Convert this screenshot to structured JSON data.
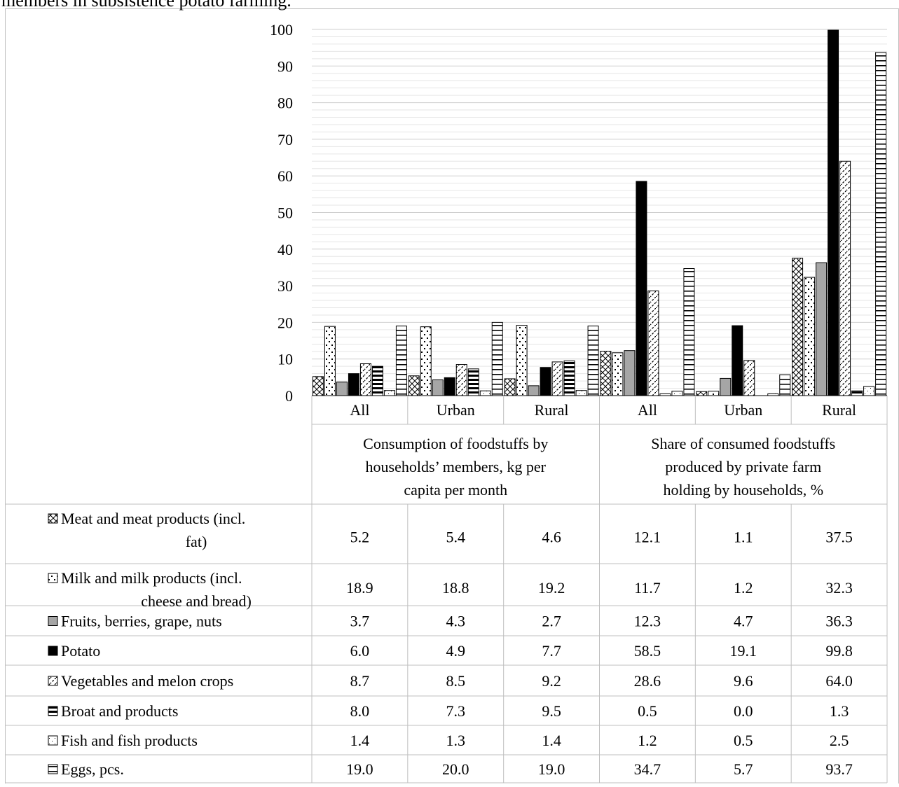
{
  "caption": "members in subsistence potato farming.",
  "chart_data": {
    "type": "bar",
    "y_ticks": [
      "0",
      "10",
      "20",
      "30",
      "40",
      "50",
      "60",
      "70",
      "80",
      "90",
      "100"
    ],
    "ylim": [
      0,
      100
    ],
    "minor_grid_step": 2,
    "categories": [
      "All",
      "Urban",
      "Rural",
      "All",
      "Urban",
      "Rural"
    ],
    "groups": [
      {
        "label": "Consumption of foodstuffs by households’ members, kg per capita per month",
        "lines": [
          "Consumption of foodstuffs by",
          "households’ members, kg per",
          "capita per month"
        ]
      },
      {
        "label": "Share of consumed foodstuffs produced by private farm holding by households, %",
        "lines": [
          "Share of consumed foodstuffs",
          "produced by private farm",
          "holding by households, %"
        ]
      }
    ],
    "series": [
      {
        "name": "Meat and meat products (incl. fat)",
        "lines": [
          "Meat and meat products (incl.",
          "fat)"
        ],
        "pattern": "crosshatch",
        "values": [
          5.2,
          5.4,
          4.6,
          12.1,
          1.1,
          37.5
        ],
        "labels": [
          "5.2",
          "5.4",
          "4.6",
          "12.1",
          "1.1",
          "37.5"
        ]
      },
      {
        "name": "Milk and milk products (incl. cheese and bread)",
        "lines": [
          "Milk and milk products (incl.",
          "cheese and bread)"
        ],
        "pattern": "dots",
        "values": [
          18.9,
          18.8,
          19.2,
          11.7,
          1.2,
          32.3
        ],
        "labels": [
          "18.9",
          "18.8",
          "19.2",
          "11.7",
          "1.2",
          "32.3"
        ]
      },
      {
        "name": "Fruits, berries, grape, nuts",
        "lines": [
          "Fruits, berries, grape, nuts"
        ],
        "pattern": "gray",
        "values": [
          3.7,
          4.3,
          2.7,
          12.3,
          4.7,
          36.3
        ],
        "labels": [
          "3.7",
          "4.3",
          "2.7",
          "12.3",
          "4.7",
          "36.3"
        ]
      },
      {
        "name": "Potato",
        "lines": [
          "Potato"
        ],
        "pattern": "black",
        "values": [
          6.0,
          4.9,
          7.7,
          58.5,
          19.1,
          99.8
        ],
        "labels": [
          "6.0",
          "4.9",
          "7.7",
          "58.5",
          "19.1",
          "99.8"
        ]
      },
      {
        "name": "Vegetables and melon crops",
        "lines": [
          "Vegetables and melon crops"
        ],
        "pattern": "diagonal",
        "values": [
          8.7,
          8.5,
          9.2,
          28.6,
          9.6,
          64.0
        ],
        "labels": [
          "8.7",
          "8.5",
          "9.2",
          "28.6",
          "9.6",
          "64.0"
        ]
      },
      {
        "name": "Broat and products",
        "lines": [
          "Broat and products"
        ],
        "pattern": "thickhoriz",
        "values": [
          8.0,
          7.3,
          9.5,
          0.5,
          0.0,
          1.3
        ],
        "labels": [
          "8.0",
          "7.3",
          "9.5",
          "0.5",
          "0.0",
          "1.3"
        ]
      },
      {
        "name": "Fish and fish products",
        "lines": [
          "Fish and fish products"
        ],
        "pattern": "smalldots",
        "values": [
          1.4,
          1.3,
          1.4,
          1.2,
          0.5,
          2.5
        ],
        "labels": [
          "1.4",
          "1.3",
          "1.4",
          "1.2",
          "0.5",
          "2.5"
        ]
      },
      {
        "name": "Eggs, pcs.",
        "lines": [
          "Eggs, pcs."
        ],
        "pattern": "horiz",
        "values": [
          19.0,
          20.0,
          19.0,
          34.7,
          5.7,
          93.7
        ],
        "labels": [
          "19.0",
          "20.0",
          "19.0",
          "34.7",
          "5.7",
          "93.7"
        ]
      }
    ],
    "colors": {
      "gray": "#a6a6a6",
      "black": "#000000",
      "grid": "#d9d9d9",
      "border": "#bfbfbf"
    },
    "grid": true,
    "legend": "data-table"
  }
}
